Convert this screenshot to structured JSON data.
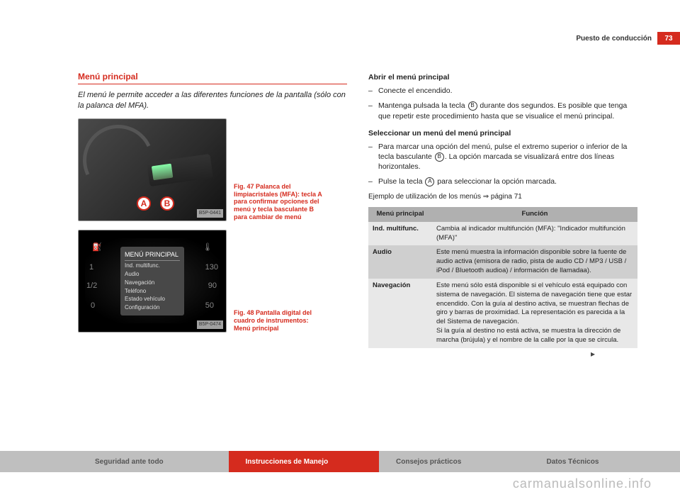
{
  "header": {
    "section_title": "Puesto de conducción",
    "page_number": "73"
  },
  "left": {
    "title": "Menú principal",
    "intro": "El menú le permite acceder a las diferentes funciones de la pantalla (sólo con la palanca del MFA).",
    "fig1": {
      "marker_a": "A",
      "marker_b": "B",
      "tag": "B5P-0441",
      "caption": "Fig. 47  Palanca del limpiacristales (MFA): tecla A para confirmar opciones del menú y tecla basculante B para cambiar de menú"
    },
    "fig2": {
      "tag": "B5P-0474",
      "caption": "Fig. 48  Pantalla digital del cuadro de instrumentos: Menú principal",
      "menu_title": "MENÚ PRINCIPAL",
      "menu_items": [
        "Ind. multifunc.",
        "Audio",
        "Navegación",
        "Teléfono",
        "Estado vehículo",
        "Configuración"
      ],
      "gauge_left": "⛽",
      "gauge_right": "🌡",
      "ticks": [
        "1",
        "1/2",
        "0",
        "130",
        "90",
        "50"
      ]
    }
  },
  "right": {
    "sub1_title": "Abrir el menú principal",
    "sub1_steps": [
      "Conecte el encendido.",
      "Mantenga pulsada la tecla {B} durante dos segundos. Es posible que tenga que repetir este procedimiento hasta que se visualice el menú principal."
    ],
    "sub2_title": "Seleccionar un menú del menú principal",
    "sub2_steps": [
      "Para marcar una opción del menú, pulse el extremo superior o inferior de la tecla basculante {B}. La opción marcada se visualizará entre dos líneas horizontales.",
      "Pulse la tecla {A} para seleccionar la opción marcada."
    ],
    "example": "Ejemplo de utilización de los menús ⇒ página 71",
    "table": {
      "head_left": "Menú principal",
      "head_right": "Función",
      "rows": [
        {
          "key": "Ind. multifunc.",
          "val": "Cambia al indicador multifunción (MFA): \"Indicador multifunción (MFA)\"",
          "shade": "light"
        },
        {
          "key": "Audio",
          "val": "Este menú muestra la información disponible sobre la fuente de audio activa (emisora de radio, pista de audio CD / MP3 / USB / iPod / Bluetooth audioa) / información de llamadaa).",
          "shade": "dark"
        },
        {
          "key": "Navegación",
          "val": "Este menú sólo está disponible si el vehículo está equipado con sistema de navegación. El sistema de navegación tiene que estar encendido. Con la guía al destino activa, se muestran flechas de giro y barras de proximidad. La representación es parecida a la del Sistema de navegación.\nSi la guía al destino no está activa, se muestra la dirección de marcha (brújula) y el nombre de la calle por la que se circula.",
          "shade": "light"
        }
      ]
    }
  },
  "footer": {
    "tabs": [
      "Seguridad ante todo",
      "Instrucciones de Manejo",
      "Consejos prácticos",
      "Datos Técnicos"
    ]
  },
  "watermark": "carmanualsonline.info",
  "labels": {
    "A": "A",
    "B": "B"
  }
}
